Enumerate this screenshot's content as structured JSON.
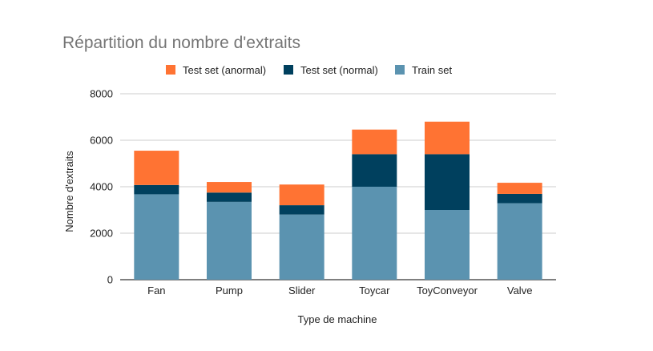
{
  "chart_data": {
    "type": "bar",
    "stacked": true,
    "title": "Répartition du nombre d'extraits",
    "xlabel": "Type de machine",
    "ylabel": "Nombre d'extraits",
    "ylim": [
      0,
      8000
    ],
    "yticks": [
      0,
      2000,
      4000,
      6000,
      8000
    ],
    "grid": true,
    "legend_position": "top",
    "categories": [
      "Fan",
      "Pump",
      "Slider",
      "Toycar",
      "ToyConveyor",
      "Valve"
    ],
    "series": [
      {
        "name": "Train set",
        "color": "#5b93b0",
        "values": [
          3675,
          3349,
          2804,
          4000,
          3000,
          3291
        ]
      },
      {
        "name": "Test set (normal)",
        "color": "#00405e",
        "values": [
          400,
          400,
          400,
          1400,
          2400,
          400
        ]
      },
      {
        "name": "Test set (anormal)",
        "color": "#ff7333",
        "values": [
          1475,
          456,
          890,
          1059,
          1400,
          479
        ]
      }
    ],
    "legend_order": [
      "Test set (anormal)",
      "Test set (normal)",
      "Train set"
    ]
  }
}
